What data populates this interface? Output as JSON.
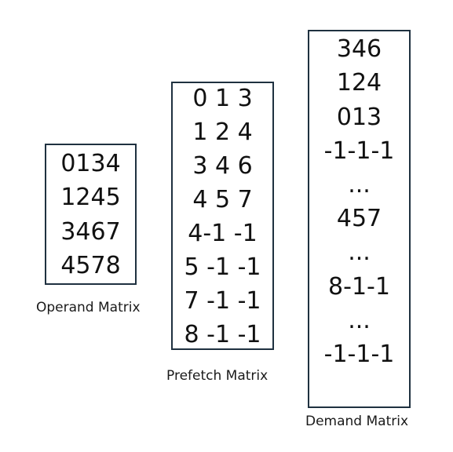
{
  "operand_matrix": {
    "caption": "Operand Matrix",
    "rows": [
      "0134",
      "1245",
      "3467",
      "4578"
    ]
  },
  "prefetch_matrix": {
    "caption": "Prefetch Matrix",
    "rows": [
      "0 1 3",
      "1 2 4",
      "3 4 6",
      "4 5 7",
      "4-1 -1",
      "5 -1 -1",
      "7 -1 -1",
      "8 -1 -1"
    ]
  },
  "demand_matrix": {
    "caption": "Demand Matrix",
    "rows": [
      "346",
      "124",
      "013",
      "-1-1-1",
      "...",
      "457",
      "...",
      "8-1-1",
      "...",
      "-1-1-1"
    ]
  },
  "colors": {
    "border": "#1f3140",
    "text": "#111111",
    "background": "#ffffff"
  }
}
